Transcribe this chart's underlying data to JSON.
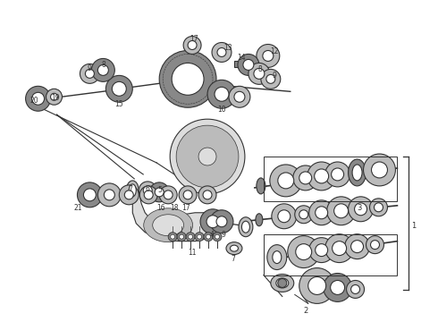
{
  "bg_color": "#ffffff",
  "line_color": "#333333",
  "fig_width": 4.9,
  "fig_height": 3.6,
  "dpi": 100,
  "gray_dark": "#555555",
  "gray_mid": "#888888",
  "gray_light": "#bbbbbb",
  "gray_fill": "#cccccc",
  "gray_lighter": "#dddddd"
}
